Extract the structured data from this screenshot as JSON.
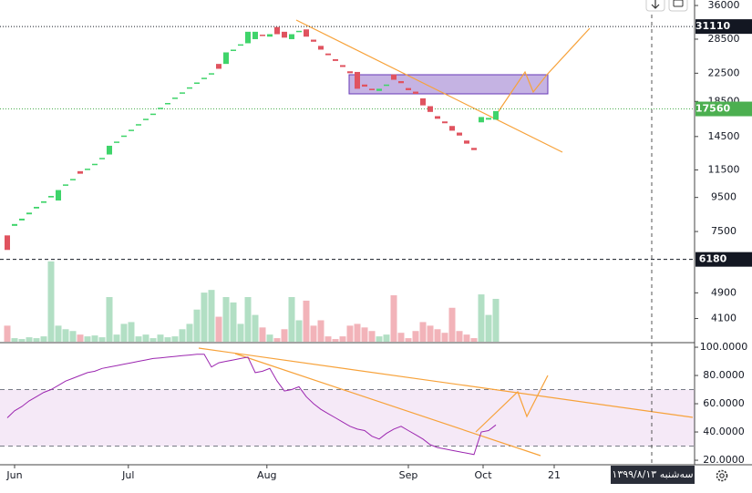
{
  "chart_data": {
    "type": "candlestick",
    "log_scale": true,
    "ylim": [
      3490,
      37400
    ],
    "yticks": [
      4100,
      4900,
      7500,
      9500,
      11500,
      14500,
      18500,
      22500,
      28500,
      36000
    ],
    "xlim": [
      -1,
      94.25
    ],
    "xticks": [
      {
        "value": 1,
        "label": "Jun"
      },
      {
        "value": 16.6,
        "label": "Jul"
      },
      {
        "value": 35.6,
        "label": "Aug"
      },
      {
        "value": 55,
        "label": "Sep"
      },
      {
        "value": 65.25,
        "label": "Oct"
      },
      {
        "value": 75,
        "label": "21"
      }
    ],
    "up_color": "#3fd46a",
    "down_color": "#e0535f",
    "open": [
      7300,
      7800,
      8100,
      8450,
      8800,
      9150,
      9500,
      9300,
      10300,
      10700,
      11400,
      11500,
      11900,
      12400,
      12800,
      13900,
      14500,
      15100,
      15700,
      16300,
      16900,
      17600,
      18200,
      18900,
      19600,
      20300,
      21000,
      21700,
      22400,
      24000,
      24000,
      26300,
      27300,
      27700,
      28500,
      29400,
      29000,
      31000,
      30000,
      28500,
      30000,
      30500,
      28400,
      27200,
      25800,
      24800,
      23800,
      22800,
      22700,
      20800,
      20200,
      19900,
      20600,
      22300,
      21300,
      20300,
      19800,
      18900,
      17900,
      16700,
      16100,
      15600,
      14900,
      14100,
      13400,
      16000,
      16300,
      16300
    ],
    "close": [
      6600,
      7900,
      8200,
      8550,
      8900,
      9250,
      9600,
      10000,
      10400,
      10800,
      11200,
      11600,
      12000,
      12500,
      13600,
      14000,
      14600,
      15200,
      15800,
      16400,
      17000,
      17700,
      18300,
      19000,
      19700,
      20400,
      21100,
      21800,
      22500,
      23200,
      26000,
      26500,
      27500,
      30000,
      30000,
      29200,
      29500,
      29500,
      28800,
      29500,
      30200,
      29000,
      28000,
      26500,
      25500,
      24500,
      23500,
      22500,
      20200,
      20500,
      20000,
      20200,
      20800,
      21500,
      21000,
      20000,
      19500,
      18000,
      17200,
      16400,
      15900,
      15100,
      14600,
      13800,
      13200,
      16600,
      16500,
      17300
    ],
    "volume": [
      18,
      4,
      3,
      5,
      4,
      6,
      90,
      18,
      14,
      12,
      8,
      6,
      7,
      5,
      50,
      8,
      20,
      22,
      6,
      8,
      4,
      8,
      5,
      6,
      14,
      20,
      36,
      55,
      58,
      28,
      50,
      44,
      20,
      50,
      30,
      16,
      8,
      4,
      14,
      50,
      24,
      46,
      18,
      24,
      6,
      3,
      6,
      18,
      20,
      16,
      12,
      6,
      8,
      52,
      10,
      4,
      12,
      22,
      18,
      14,
      10,
      38,
      12,
      8,
      4,
      53,
      30,
      48
    ],
    "up_volume_color": "#b2dfc4",
    "down_volume_color": "#f2b3b9",
    "price_lines": [
      {
        "value": 31110,
        "color": "#131722",
        "style": "dotted"
      },
      {
        "value": 17560,
        "color": "#4caf50",
        "style": "dotted"
      },
      {
        "value": 6180,
        "color": "#131722",
        "style": "dashed"
      }
    ],
    "rsi": {
      "values": [
        50,
        55,
        58,
        62,
        65,
        68,
        70,
        73,
        76,
        78,
        80,
        82,
        83,
        85,
        86,
        87,
        88,
        89,
        90,
        91,
        92,
        92.5,
        93,
        93.5,
        94,
        94.5,
        95,
        95,
        86,
        89,
        90,
        91,
        92,
        93,
        82,
        83,
        85,
        76,
        69,
        70,
        72,
        65,
        60,
        56,
        53,
        50,
        47,
        44,
        42,
        41,
        37,
        35,
        39,
        42,
        44,
        41,
        38,
        35,
        31,
        29,
        28,
        27,
        26,
        25,
        24,
        40,
        41,
        45
      ],
      "color": "#9c27b0",
      "ylim": [
        16.8,
        102.6
      ],
      "yticks": [
        {
          "value": 20,
          "label": "20.0000"
        },
        {
          "value": 40,
          "label": "40.0000"
        },
        {
          "value": 60,
          "label": "60.0000"
        },
        {
          "value": 80,
          "label": "80.0000"
        },
        {
          "value": 100,
          "label": "100.0000"
        }
      ],
      "band": [
        30,
        70
      ]
    },
    "date_label": "سه‌شنبه ۱۳۹۹/۸/۱۳"
  }
}
